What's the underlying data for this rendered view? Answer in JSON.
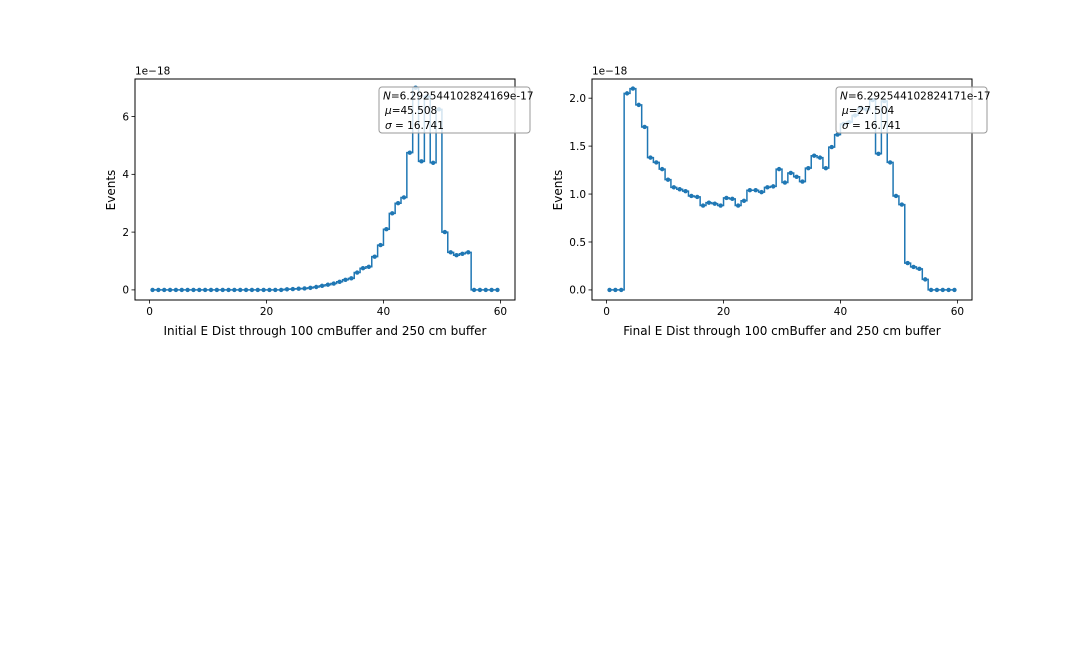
{
  "colors": {
    "series": "#1f77b4",
    "axis": "#000000",
    "background": "#ffffff",
    "legend_border": "#999999"
  },
  "chart_data": [
    {
      "type": "line",
      "drawstyle": "steps-mid with point markers",
      "xlabel": "Initial E Dist through 100 cmBuffer and 250 cm buffer",
      "ylabel": "Events",
      "y_offset_label": "1e−18",
      "xlim": [
        -2.5,
        62.5
      ],
      "ylim": [
        -0.35,
        7.3
      ],
      "xticks": [
        0,
        20,
        40,
        60
      ],
      "yticks": [
        0,
        2,
        4,
        6
      ],
      "grid": false,
      "legend_position": "top-right",
      "stats_box": {
        "N": "6.292544102824169e-17",
        "mu": "45.508",
        "sigma": "16.741"
      },
      "x": [
        0.5,
        1.5,
        2.5,
        3.5,
        4.5,
        5.5,
        6.5,
        7.5,
        8.5,
        9.5,
        10.5,
        11.5,
        12.5,
        13.5,
        14.5,
        15.5,
        16.5,
        17.5,
        18.5,
        19.5,
        20.5,
        21.5,
        22.5,
        23.5,
        24.5,
        25.5,
        26.5,
        27.5,
        28.5,
        29.5,
        30.5,
        31.5,
        32.5,
        33.5,
        34.5,
        35.5,
        36.5,
        37.5,
        38.5,
        39.5,
        40.5,
        41.5,
        42.5,
        43.5,
        44.5,
        45.5,
        46.5,
        47.5,
        48.5,
        49.5,
        50.5,
        51.5,
        52.5,
        53.5,
        54.5,
        55.5,
        56.5,
        57.5,
        58.5,
        59.5
      ],
      "series": [
        {
          "values": [
            0,
            0,
            0,
            0,
            0,
            0,
            0,
            0,
            0,
            0,
            0,
            0,
            0,
            0,
            0,
            0,
            0,
            0,
            0,
            0,
            0,
            0,
            0,
            0.02,
            0.03,
            0.04,
            0.05,
            0.07,
            0.1,
            0.14,
            0.18,
            0.22,
            0.28,
            0.35,
            0.4,
            0.6,
            0.75,
            0.8,
            1.15,
            1.55,
            2.1,
            2.65,
            3.0,
            3.2,
            4.75,
            7.0,
            4.45,
            6.7,
            4.4,
            6.25,
            2.0,
            1.3,
            1.2,
            1.25,
            1.3,
            0,
            0,
            0,
            0,
            0
          ]
        }
      ]
    },
    {
      "type": "line",
      "drawstyle": "steps-mid with point markers",
      "xlabel": "Final E Dist through 100 cmBuffer and 250 cm buffer",
      "ylabel": "Events",
      "y_offset_label": "1e−18",
      "xlim": [
        -2.5,
        62.5
      ],
      "ylim": [
        -0.105,
        2.2
      ],
      "xticks": [
        0,
        20,
        40,
        60
      ],
      "yticks": [
        0.0,
        0.5,
        1.0,
        1.5,
        2.0
      ],
      "grid": false,
      "legend_position": "top-right",
      "stats_box": {
        "N": "6.292544102824171e-17",
        "mu": "27.504",
        "sigma": "16.741"
      },
      "x": [
        0.5,
        1.5,
        2.5,
        3.5,
        4.5,
        5.5,
        6.5,
        7.5,
        8.5,
        9.5,
        10.5,
        11.5,
        12.5,
        13.5,
        14.5,
        15.5,
        16.5,
        17.5,
        18.5,
        19.5,
        20.5,
        21.5,
        22.5,
        23.5,
        24.5,
        25.5,
        26.5,
        27.5,
        28.5,
        29.5,
        30.5,
        31.5,
        32.5,
        33.5,
        34.5,
        35.5,
        36.5,
        37.5,
        38.5,
        39.5,
        40.5,
        41.5,
        42.5,
        43.5,
        44.5,
        45.5,
        46.5,
        47.5,
        48.5,
        49.5,
        50.5,
        51.5,
        52.5,
        53.5,
        54.5,
        55.5,
        56.5,
        57.5,
        58.5,
        59.5
      ],
      "series": [
        {
          "values": [
            0,
            0,
            0,
            2.05,
            2.1,
            1.93,
            1.7,
            1.38,
            1.33,
            1.26,
            1.15,
            1.07,
            1.05,
            1.03,
            0.98,
            0.97,
            0.88,
            0.91,
            0.9,
            0.88,
            0.96,
            0.95,
            0.88,
            0.93,
            1.04,
            1.04,
            1.02,
            1.07,
            1.08,
            1.26,
            1.12,
            1.22,
            1.18,
            1.13,
            1.27,
            1.4,
            1.38,
            1.27,
            1.49,
            1.62,
            1.73,
            1.75,
            1.82,
            1.9,
            1.88,
            1.98,
            1.42,
            1.97,
            1.33,
            0.98,
            0.89,
            0.28,
            0.24,
            0.22,
            0.11,
            0,
            0,
            0,
            0,
            0
          ]
        }
      ]
    }
  ]
}
